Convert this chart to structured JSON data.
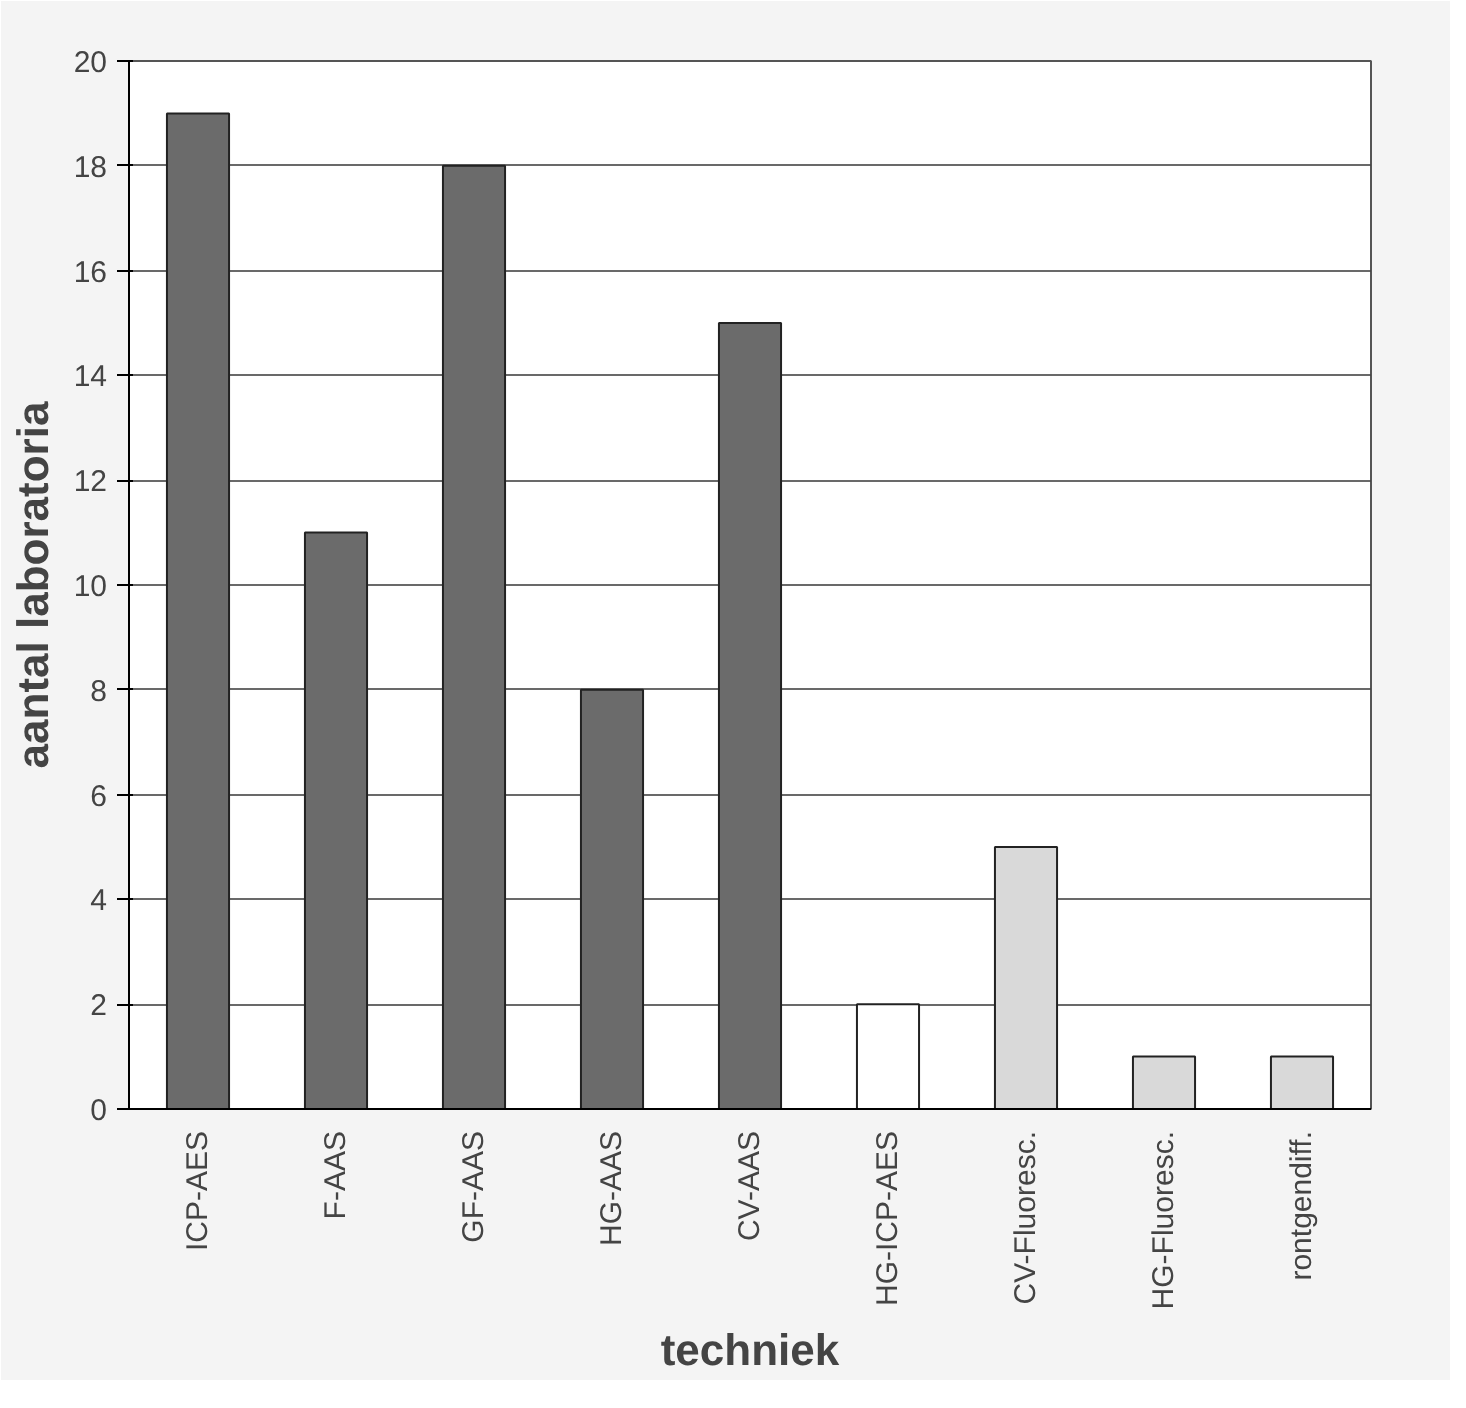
{
  "chart_data": {
    "type": "bar",
    "xlabel": "techniek",
    "ylabel": "aantal laboratoria",
    "categories": [
      "ICP-AES",
      "F-AAS",
      "GF-AAS",
      "HG-AAS",
      "CV-AAS",
      "HG-ICP-AES",
      "CV-Fluoresc.",
      "HG-Fluoresc.",
      "rontgendiff."
    ],
    "values": [
      19,
      11,
      18,
      8,
      15,
      2,
      5,
      1,
      1
    ],
    "colors": [
      "#6b6b6b",
      "#6b6b6b",
      "#6b6b6b",
      "#6b6b6b",
      "#6b6b6b",
      "#ffffff",
      "#d9d9d9",
      "#d9d9d9",
      "#d9d9d9"
    ],
    "ylim": [
      0,
      20
    ],
    "yticks": [
      0,
      2,
      4,
      6,
      8,
      10,
      12,
      14,
      16,
      18,
      20
    ],
    "grid": "y"
  }
}
